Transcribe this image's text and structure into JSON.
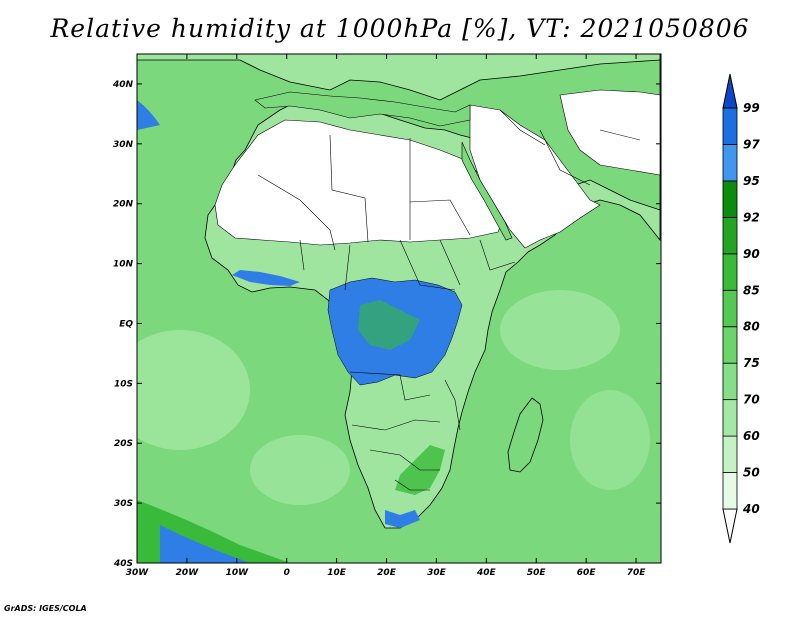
{
  "title": "Relative humidity at 1000hPa [%], VT: 2021050806",
  "footer": "GrADS: IGES/COLA",
  "map": {
    "lon_range": [
      -30,
      75
    ],
    "lat_range": [
      -40,
      45
    ],
    "lat_ticks": [
      {
        "label": "40N",
        "value": 40
      },
      {
        "label": "30N",
        "value": 30
      },
      {
        "label": "20N",
        "value": 20
      },
      {
        "label": "10N",
        "value": 10
      },
      {
        "label": "EQ",
        "value": 0
      },
      {
        "label": "10S",
        "value": -10
      },
      {
        "label": "20S",
        "value": -20
      },
      {
        "label": "30S",
        "value": -30
      },
      {
        "label": "40S",
        "value": -40
      }
    ],
    "lon_ticks": [
      {
        "label": "30W",
        "value": -30
      },
      {
        "label": "20W",
        "value": -20
      },
      {
        "label": "10W",
        "value": -10
      },
      {
        "label": "0",
        "value": 0
      },
      {
        "label": "10E",
        "value": 10
      },
      {
        "label": "20E",
        "value": 20
      },
      {
        "label": "30E",
        "value": 30
      },
      {
        "label": "40E",
        "value": 40
      },
      {
        "label": "50E",
        "value": 50
      },
      {
        "label": "60E",
        "value": 60
      },
      {
        "label": "70E",
        "value": 70
      }
    ]
  },
  "colorbar": {
    "levels": [
      "40",
      "50",
      "60",
      "70",
      "75",
      "80",
      "85",
      "90",
      "92",
      "95",
      "97",
      "99"
    ],
    "colors": [
      "#ffffff",
      "#e6fbe6",
      "#c4f2c4",
      "#a3e8a3",
      "#86de86",
      "#6bd46b",
      "#52c952",
      "#3aba3a",
      "#23a523",
      "#0c8c0c",
      "#3f97ef",
      "#1c6fe0",
      "#0b47c8"
    ]
  },
  "colors": {
    "ocean": "#7cd87c",
    "desert": "#ffffff",
    "land": "#9fe49f",
    "wet": "#2f7ee6",
    "border": "#000000"
  }
}
